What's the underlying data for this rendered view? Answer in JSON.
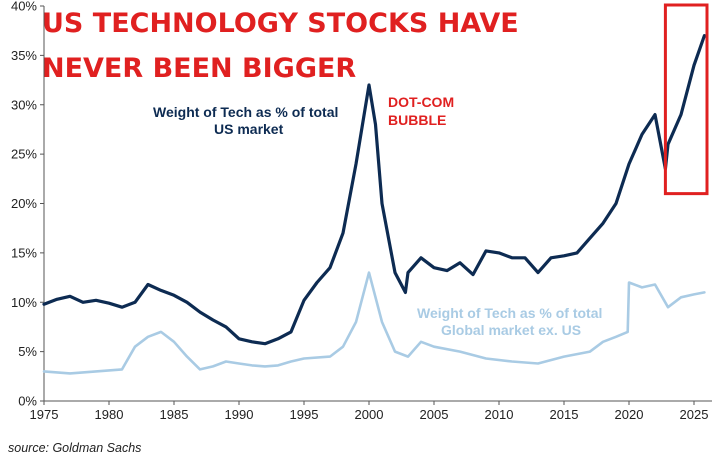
{
  "chart_data": {
    "type": "line",
    "title_lines": [
      "US TECHNOLOGY STOCKS HAVE",
      "NEVER BEEN BIGGER"
    ],
    "source": "source: Goldman Sachs",
    "xlim": [
      1975,
      2026
    ],
    "ylim": [
      0,
      40
    ],
    "x_ticks": [
      "1975",
      "1980",
      "1985",
      "1990",
      "1995",
      "2000",
      "2005",
      "2010",
      "2015",
      "2020",
      "2025"
    ],
    "y_ticks": [
      "0%",
      "5%",
      "10%",
      "15%",
      "20%",
      "25%",
      "30%",
      "35%",
      "40%"
    ],
    "series": [
      {
        "name": "Weight of Tech as % of total US market",
        "label_lines": [
          "Weight of Tech as % of total",
          "US market"
        ],
        "color": "#0d2b52",
        "points": [
          [
            1975,
            9.8
          ],
          [
            1976,
            10.3
          ],
          [
            1977,
            10.6
          ],
          [
            1978,
            10.0
          ],
          [
            1979,
            10.2
          ],
          [
            1980,
            9.9
          ],
          [
            1981,
            9.5
          ],
          [
            1982,
            10.0
          ],
          [
            1983,
            11.8
          ],
          [
            1984,
            11.2
          ],
          [
            1985,
            10.7
          ],
          [
            1986,
            10.0
          ],
          [
            1987,
            9.0
          ],
          [
            1988,
            8.2
          ],
          [
            1989,
            7.5
          ],
          [
            1990,
            6.3
          ],
          [
            1991,
            6.0
          ],
          [
            1992,
            5.8
          ],
          [
            1993,
            6.3
          ],
          [
            1994,
            7.0
          ],
          [
            1995,
            10.2
          ],
          [
            1996,
            12.0
          ],
          [
            1997,
            13.5
          ],
          [
            1998,
            17.0
          ],
          [
            1999,
            24.0
          ],
          [
            2000,
            32.0
          ],
          [
            2000.5,
            28.0
          ],
          [
            2001,
            20.0
          ],
          [
            2002,
            13.0
          ],
          [
            2002.8,
            11.0
          ],
          [
            2003,
            13.0
          ],
          [
            2004,
            14.5
          ],
          [
            2005,
            13.5
          ],
          [
            2006,
            13.2
          ],
          [
            2007,
            14.0
          ],
          [
            2008,
            12.8
          ],
          [
            2009,
            15.2
          ],
          [
            2010,
            15.0
          ],
          [
            2011,
            14.5
          ],
          [
            2012,
            14.5
          ],
          [
            2013,
            13.0
          ],
          [
            2014,
            14.5
          ],
          [
            2015,
            14.7
          ],
          [
            2016,
            15.0
          ],
          [
            2017,
            16.5
          ],
          [
            2018,
            18.0
          ],
          [
            2019,
            20.0
          ],
          [
            2020,
            24.0
          ],
          [
            2021,
            27.0
          ],
          [
            2022,
            29.0
          ],
          [
            2022.8,
            23.5
          ],
          [
            2023,
            26.0
          ],
          [
            2024,
            29.0
          ],
          [
            2025,
            34.0
          ],
          [
            2025.8,
            37.0
          ]
        ]
      },
      {
        "name": "Weight of Tech as % of total Global market ex. US",
        "label_lines": [
          "Weight of Tech as % of total",
          "Global market ex. US"
        ],
        "color": "#a9cbe4",
        "points": [
          [
            1975,
            3.0
          ],
          [
            1977,
            2.8
          ],
          [
            1979,
            3.0
          ],
          [
            1981,
            3.2
          ],
          [
            1982,
            5.5
          ],
          [
            1983,
            6.5
          ],
          [
            1984,
            7.0
          ],
          [
            1985,
            6.0
          ],
          [
            1986,
            4.5
          ],
          [
            1987,
            3.2
          ],
          [
            1988,
            3.5
          ],
          [
            1989,
            4.0
          ],
          [
            1990,
            3.8
          ],
          [
            1991,
            3.6
          ],
          [
            1992,
            3.5
          ],
          [
            1993,
            3.6
          ],
          [
            1994,
            4.0
          ],
          [
            1995,
            4.3
          ],
          [
            1997,
            4.5
          ],
          [
            1998,
            5.5
          ],
          [
            1999,
            8.0
          ],
          [
            2000,
            13.0
          ],
          [
            2001,
            8.0
          ],
          [
            2002,
            5.0
          ],
          [
            2003,
            4.5
          ],
          [
            2004,
            6.0
          ],
          [
            2005,
            5.5
          ],
          [
            2007,
            5.0
          ],
          [
            2009,
            4.3
          ],
          [
            2011,
            4.0
          ],
          [
            2013,
            3.8
          ],
          [
            2015,
            4.5
          ],
          [
            2017,
            5.0
          ],
          [
            2018,
            6.0
          ],
          [
            2019,
            6.5
          ],
          [
            2019.9,
            7.0
          ],
          [
            2020,
            12.0
          ],
          [
            2021,
            11.5
          ],
          [
            2022,
            11.8
          ],
          [
            2023,
            9.5
          ],
          [
            2024,
            10.5
          ],
          [
            2025,
            10.8
          ],
          [
            2025.8,
            11.0
          ]
        ]
      }
    ],
    "annotations": {
      "dot_com": [
        "DOT-COM",
        "BUBBLE"
      ],
      "highlight_box": {
        "x_from": 2022.8,
        "x_to": 2026.0,
        "y_from": 21.0,
        "y_to": 40.5
      }
    },
    "grid": false,
    "legend": "inline-labels"
  },
  "colors": {
    "title": "#e02020",
    "box": "#e02020",
    "us": "#0d2b52",
    "global": "#a9cbe4"
  }
}
